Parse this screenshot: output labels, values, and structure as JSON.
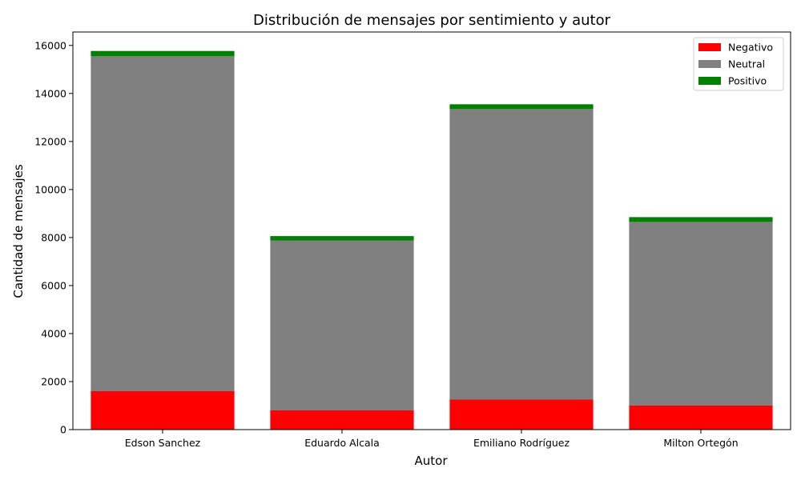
{
  "chart_data": {
    "type": "bar",
    "stacked": true,
    "title": "Distribución de mensajes por sentimiento y autor",
    "xlabel": "Autor",
    "ylabel": "Cantidad de mensajes",
    "categories": [
      "Edson Sanchez",
      "Eduardo Alcala",
      "Emiliano Rodríguez",
      "Milton Ortegón"
    ],
    "series": [
      {
        "name": "Negativo",
        "color": "#ff0000",
        "values": [
          1600,
          800,
          1250,
          1000
        ]
      },
      {
        "name": "Neutral",
        "color": "#808080",
        "values": [
          13950,
          7080,
          12100,
          7650
        ]
      },
      {
        "name": "Positivo",
        "color": "#008000",
        "values": [
          220,
          180,
          200,
          200
        ]
      }
    ],
    "ylim": [
      0,
      16560
    ],
    "yticks": [
      "0",
      "2000",
      "4000",
      "6000",
      "8000",
      "10000",
      "12000",
      "14000",
      "16000"
    ],
    "grid": false,
    "legend": "top-right"
  }
}
